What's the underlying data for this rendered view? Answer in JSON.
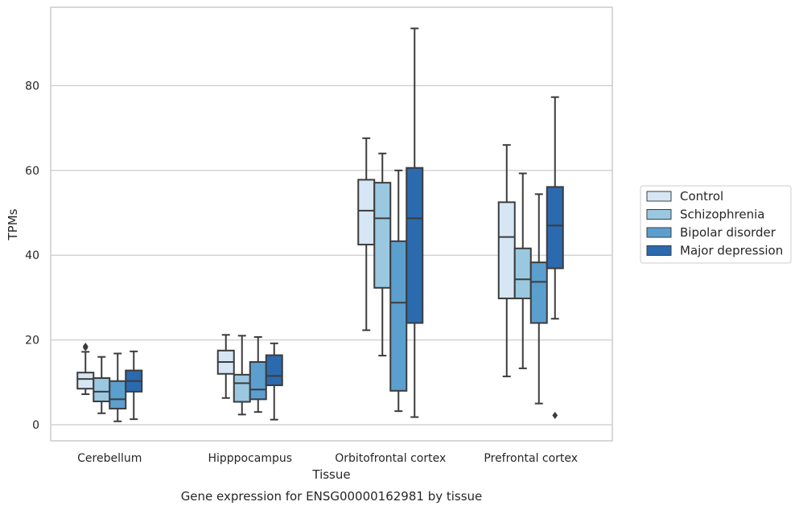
{
  "caption": "Gene expression for ENSG00000162981 by tissue",
  "chart_data": {
    "type": "box",
    "title": "",
    "xlabel": "Tissue",
    "ylabel": "TPMs",
    "ylim": [
      -3.8,
      98.5
    ],
    "yticks": [
      0,
      20,
      40,
      60,
      80
    ],
    "grid": "horizontal",
    "legend_position": "right",
    "categories": [
      "Cerebellum",
      "Hipppocampus",
      "Orbitofrontal cortex",
      "Prefrontal cortex"
    ],
    "series": [
      {
        "name": "Control",
        "color": "#d6e6f4",
        "boxes": [
          {
            "whislo": 7.2,
            "q1": 8.5,
            "median": 10.8,
            "q3": 12.3,
            "whishi": 17.2,
            "fliers": [
              18.5,
              18.2
            ]
          },
          {
            "whislo": 6.3,
            "q1": 12.0,
            "median": 14.8,
            "q3": 17.5,
            "whishi": 21.2,
            "fliers": []
          },
          {
            "whislo": 22.3,
            "q1": 42.5,
            "median": 50.5,
            "q3": 57.8,
            "whishi": 67.6,
            "fliers": []
          },
          {
            "whislo": 11.4,
            "q1": 29.8,
            "median": 44.3,
            "q3": 52.5,
            "whishi": 66.0,
            "fliers": []
          }
        ]
      },
      {
        "name": "Schizophrenia",
        "color": "#9ac8e0",
        "boxes": [
          {
            "whislo": 2.7,
            "q1": 5.5,
            "median": 7.8,
            "q3": 11.0,
            "whishi": 16.0,
            "fliers": []
          },
          {
            "whislo": 2.4,
            "q1": 5.4,
            "median": 9.8,
            "q3": 11.8,
            "whishi": 21.0,
            "fliers": []
          },
          {
            "whislo": 16.3,
            "q1": 32.3,
            "median": 48.7,
            "q3": 57.1,
            "whishi": 64.0,
            "fliers": []
          },
          {
            "whislo": 13.3,
            "q1": 29.8,
            "median": 34.3,
            "q3": 41.6,
            "whishi": 59.3,
            "fliers": []
          }
        ]
      },
      {
        "name": "Bipolar disorder",
        "color": "#5b9fcf",
        "boxes": [
          {
            "whislo": 0.8,
            "q1": 3.8,
            "median": 6.0,
            "q3": 10.3,
            "whishi": 16.8,
            "fliers": []
          },
          {
            "whislo": 3.0,
            "q1": 6.0,
            "median": 8.3,
            "q3": 14.8,
            "whishi": 20.7,
            "fliers": []
          },
          {
            "whislo": 3.2,
            "q1": 8.0,
            "median": 28.8,
            "q3": 43.3,
            "whishi": 60.0,
            "fliers": []
          },
          {
            "whislo": 5.0,
            "q1": 24.0,
            "median": 33.7,
            "q3": 38.3,
            "whishi": 54.4,
            "fliers": []
          }
        ]
      },
      {
        "name": "Major depression",
        "color": "#2b6aae",
        "boxes": [
          {
            "whislo": 1.3,
            "q1": 7.8,
            "median": 10.3,
            "q3": 12.8,
            "whishi": 17.3,
            "fliers": []
          },
          {
            "whislo": 1.2,
            "q1": 9.3,
            "median": 11.5,
            "q3": 16.4,
            "whishi": 19.2,
            "fliers": []
          },
          {
            "whislo": 1.8,
            "q1": 24.0,
            "median": 48.7,
            "q3": 60.6,
            "whishi": 93.5,
            "fliers": []
          },
          {
            "whislo": 25.0,
            "q1": 36.9,
            "median": 47.0,
            "q3": 56.1,
            "whishi": 77.3,
            "fliers": [
              2.2
            ]
          }
        ]
      }
    ]
  }
}
